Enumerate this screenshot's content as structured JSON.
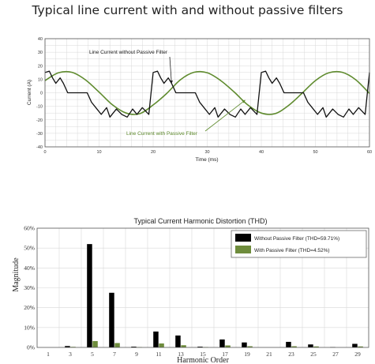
{
  "page_title": "Typical line current with and without passive filters",
  "colors": {
    "dark": "#111111",
    "green": "#5f8b2e",
    "grid": "#d8d8d8",
    "bar_green": "#6e8c3c"
  },
  "chart_data": [
    {
      "type": "line",
      "title": "",
      "xlabel": "Time (ms)",
      "ylabel": "Current (A)",
      "xlim": [
        0,
        60
      ],
      "ylim": [
        -40,
        40
      ],
      "xticks": [
        0,
        10,
        20,
        30,
        40,
        50,
        60
      ],
      "yticks": [
        40,
        30,
        20,
        10,
        0,
        -10,
        -20,
        -30,
        -40
      ],
      "grid": true,
      "period_ms": 20,
      "series": [
        {
          "name": "Line Current without Passive Filter",
          "x": [
            0,
            0.8,
            1.4,
            2,
            2.8,
            3.4,
            4.2,
            6,
            7.8,
            8.6,
            9.4,
            10.4,
            11.4,
            12,
            13.2,
            14.2,
            15.2,
            16.2,
            17,
            18,
            19.2,
            20,
            20.8,
            21.4,
            22,
            22.8,
            23.4,
            24.2,
            26,
            27.8,
            28.6,
            29.4,
            30.4,
            31.4,
            32,
            33.2,
            34.2,
            35.2,
            36.2,
            37,
            38,
            39.2,
            40,
            40.8,
            41.4,
            42,
            42.8,
            43.4,
            44.2,
            46,
            47.8,
            48.6,
            49.4,
            50.4,
            51.4,
            52,
            53.2,
            54.2,
            55.2,
            56.2,
            57,
            58,
            59.2,
            60
          ],
          "y": [
            15,
            16,
            11,
            7,
            11,
            7,
            0,
            0,
            0,
            -7,
            -11,
            -16,
            -11,
            -18,
            -12,
            -16,
            -18,
            -12,
            -16,
            -11,
            -16,
            15,
            16,
            11,
            7,
            11,
            7,
            0,
            0,
            0,
            -7,
            -11,
            -16,
            -11,
            -18,
            -12,
            -16,
            -18,
            -12,
            -16,
            -11,
            -16,
            15,
            16,
            11,
            7,
            11,
            7,
            0,
            0,
            0,
            -7,
            -11,
            -16,
            -11,
            -18,
            -12,
            -16,
            -18,
            -12,
            -16,
            -11,
            -16,
            15
          ]
        },
        {
          "name": "Line Current with Passive Filter",
          "x": [
            0,
            2.5,
            5,
            7.5,
            10,
            12.5,
            15,
            17.5,
            20,
            22.5,
            25,
            27.5,
            30,
            32.5,
            35,
            37.5,
            40,
            42.5,
            45,
            47.5,
            50,
            52.5,
            55,
            57.5,
            60
          ],
          "y": [
            9,
            14.8,
            15.1,
            9.5,
            0.5,
            -9,
            -15,
            -15.5,
            -9,
            -0.5,
            9.5,
            15.1,
            14.8,
            9,
            0.5,
            -9,
            -15,
            -15.5,
            -9.5,
            -0.5,
            9,
            14.8,
            15.1,
            9.5,
            -0.5
          ]
        }
      ],
      "annotations": [
        {
          "text": "Line Current without Passive Filter",
          "points_to": {
            "x": 23.4,
            "y": 7
          }
        },
        {
          "text": "Line Current with Passive Filter",
          "points_to": {
            "x": 37,
            "y": -5.5
          }
        }
      ]
    },
    {
      "type": "bar",
      "title": "Typical Current Harmonic Distortion (THD)",
      "xlabel": "Harmonic Order",
      "ylabel": "Magnitude",
      "ylim": [
        0,
        60
      ],
      "yticks": [
        0,
        10,
        20,
        30,
        40,
        50,
        60
      ],
      "ytick_labels": [
        "0%",
        "10%",
        "20%",
        "30%",
        "40%",
        "50%",
        "60%"
      ],
      "categories": [
        "1",
        "3",
        "5",
        "7",
        "9",
        "11",
        "13",
        "15",
        "17",
        "19",
        "21",
        "23",
        "25",
        "27",
        "29"
      ],
      "legend": "top-right",
      "series": [
        {
          "name": "Without Passive Filter (THD=59.71%)",
          "color": "#000000",
          "values": [
            0,
            0.7,
            52,
            27.5,
            0.4,
            8,
            6,
            0.4,
            4,
            2.5,
            0,
            2.8,
            1.5,
            0.2,
            1.8
          ]
        },
        {
          "name": "With Passive Filter (THD=4.52%)",
          "color": "#6e8c3c",
          "values": [
            0,
            0.3,
            3.2,
            2.2,
            0.2,
            2,
            1.1,
            0.2,
            1,
            0.6,
            0,
            0.6,
            0.5,
            0,
            0.5
          ]
        }
      ]
    }
  ]
}
